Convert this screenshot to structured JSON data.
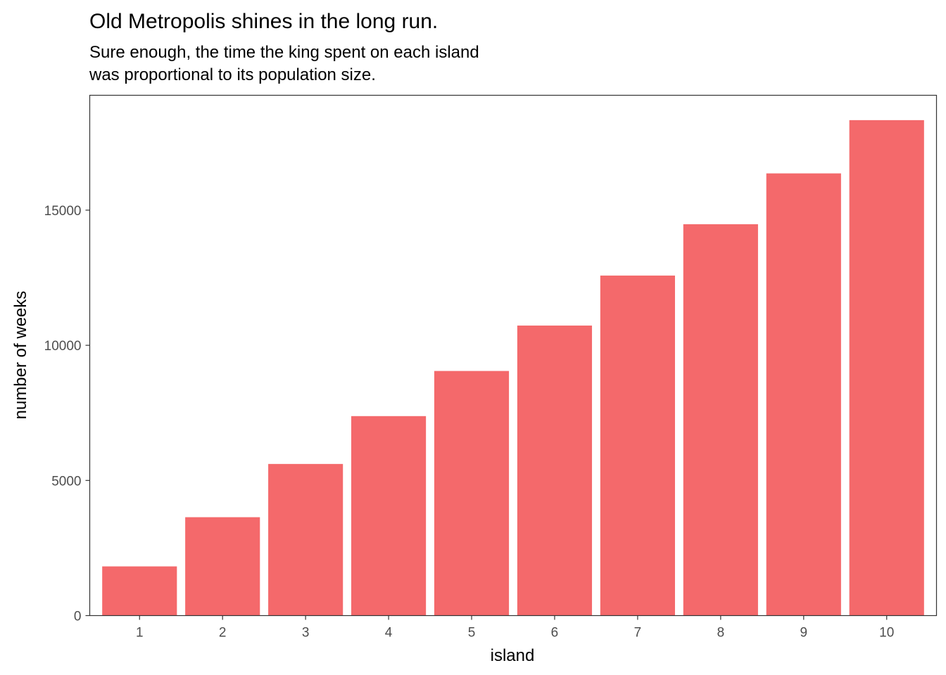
{
  "chart_data": {
    "type": "bar",
    "title": "Old Metropolis shines in the long run.",
    "subtitle_lines": [
      "Sure enough, the time the king spent on each island",
      "was proportional to its population size."
    ],
    "xlabel": "island",
    "ylabel": "number of weeks",
    "categories": [
      "1",
      "2",
      "3",
      "4",
      "5",
      "6",
      "7",
      "8",
      "9",
      "10"
    ],
    "values": [
      1820,
      3640,
      5610,
      7380,
      9050,
      10730,
      12580,
      14480,
      16360,
      18330
    ],
    "yticks": [
      0,
      5000,
      10000,
      15000
    ],
    "ylim": [
      0,
      19250
    ],
    "bar_color": "#F4696B",
    "grid": false,
    "legend": "none"
  }
}
